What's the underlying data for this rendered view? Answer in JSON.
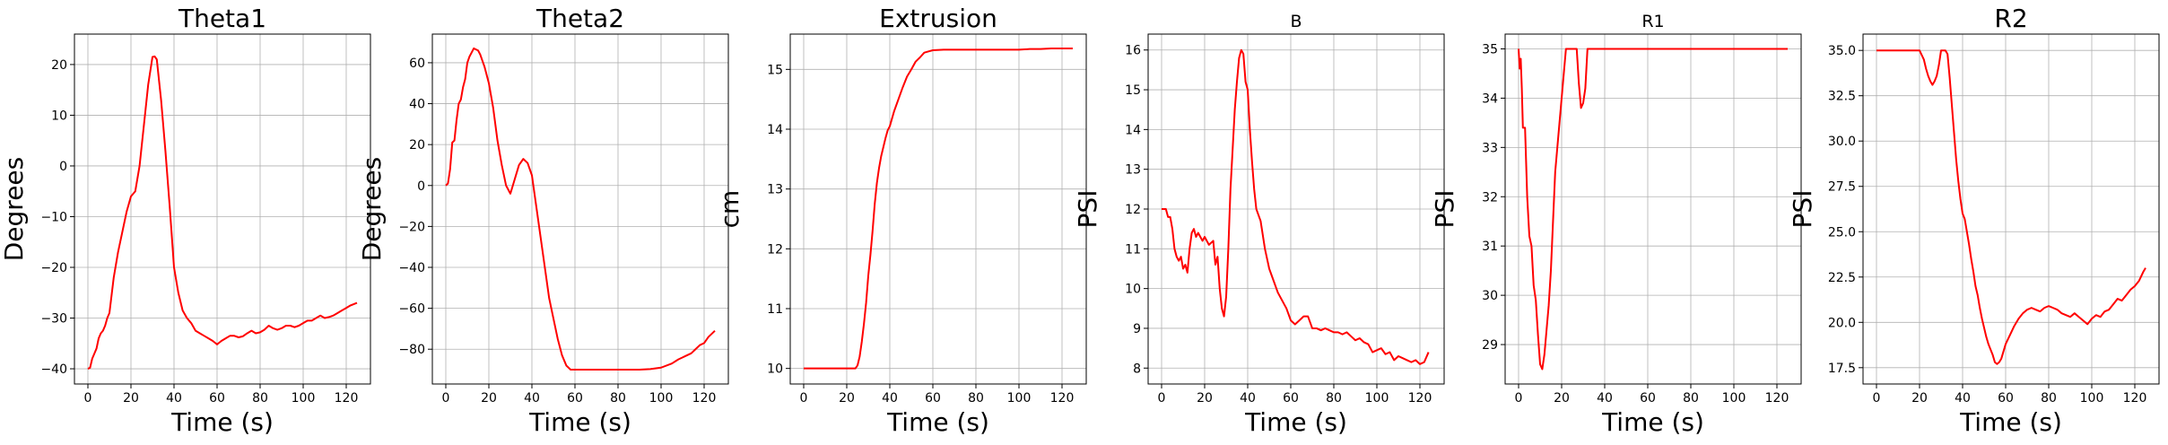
{
  "chart_data": [
    {
      "type": "line",
      "title": "Theta1",
      "xlabel": "Time (s)",
      "ylabel": "Degrees",
      "xlim": [
        -6.25,
        131.25
      ],
      "ylim": [
        -43,
        26
      ],
      "xticks": [
        0,
        20,
        40,
        60,
        80,
        100,
        120
      ],
      "yticks": [
        -40,
        -30,
        -20,
        -10,
        0,
        10,
        20
      ],
      "xtick_labels": [
        "0",
        "20",
        "40",
        "60",
        "80",
        "100",
        "120"
      ],
      "ytick_labels": [
        "−40",
        "−30",
        "−20",
        "−10",
        "0",
        "10",
        "20"
      ],
      "grid": true,
      "color": "#ff0000",
      "series": [
        {
          "x": [
            0,
            1,
            2,
            3,
            4,
            5,
            6,
            7,
            8,
            9,
            10,
            12,
            14,
            16,
            18,
            20,
            22,
            24,
            26,
            28,
            30,
            31,
            32,
            34,
            36,
            38,
            40,
            42,
            44,
            46,
            48,
            50,
            52,
            54,
            56,
            58,
            60,
            62,
            64,
            66,
            68,
            70,
            72,
            74,
            76,
            78,
            80,
            82,
            84,
            86,
            88,
            90,
            92,
            94,
            96,
            98,
            100,
            102,
            104,
            106,
            108,
            110,
            112,
            114,
            116,
            118,
            120,
            122,
            125
          ],
          "values": [
            -40,
            -39.8,
            -38,
            -37,
            -36,
            -34,
            -33,
            -32.5,
            -31.5,
            -30,
            -29,
            -22,
            -17,
            -13,
            -9,
            -6,
            -5,
            0,
            8,
            16,
            21.5,
            21.6,
            21,
            13,
            3,
            -8,
            -20,
            -25,
            -28.5,
            -30,
            -31,
            -32.5,
            -33,
            -33.5,
            -34,
            -34.5,
            -35.2,
            -34.5,
            -34,
            -33.5,
            -33.5,
            -33.8,
            -33.6,
            -33,
            -32.5,
            -33,
            -32.8,
            -32.3,
            -31.5,
            -32,
            -32.3,
            -32,
            -31.5,
            -31.5,
            -31.8,
            -31.5,
            -31,
            -30.5,
            -30.5,
            -30,
            -29.5,
            -30,
            -29.8,
            -29.5,
            -29,
            -28.5,
            -28,
            -27.5,
            -27
          ]
        }
      ]
    },
    {
      "type": "line",
      "title": "Theta2",
      "xlabel": "Time (s)",
      "ylabel": "Degrees",
      "xlim": [
        -6.25,
        131.25
      ],
      "ylim": [
        -97,
        74
      ],
      "xticks": [
        0,
        20,
        40,
        60,
        80,
        100,
        120
      ],
      "yticks": [
        -80,
        -60,
        -40,
        -20,
        0,
        20,
        40,
        60
      ],
      "xtick_labels": [
        "0",
        "20",
        "40",
        "60",
        "80",
        "100",
        "120"
      ],
      "ytick_labels": [
        "−80",
        "−60",
        "−40",
        "−20",
        "0",
        "20",
        "40",
        "60"
      ],
      "grid": true,
      "color": "#ff0000",
      "series": [
        {
          "x": [
            0,
            1,
            2,
            3,
            4,
            5,
            6,
            7,
            8,
            9,
            10,
            11,
            12,
            13,
            14,
            15,
            16,
            17,
            18,
            20,
            22,
            24,
            26,
            28,
            30,
            32,
            34,
            36,
            38,
            40,
            42,
            44,
            46,
            48,
            50,
            52,
            54,
            56,
            58,
            60,
            65,
            70,
            75,
            80,
            85,
            90,
            95,
            100,
            105,
            108,
            110,
            112,
            114,
            116,
            118,
            120,
            122,
            125
          ],
          "values": [
            0,
            1,
            8,
            21,
            22,
            32,
            40,
            42,
            48,
            52,
            60,
            63,
            65,
            67,
            66.5,
            66,
            64,
            61,
            58,
            50,
            38,
            22,
            10,
            0,
            -4,
            3,
            10,
            13,
            11,
            5,
            -10,
            -25,
            -40,
            -55,
            -65,
            -75,
            -83,
            -88,
            -90,
            -90,
            -90,
            -90,
            -90,
            -90,
            -90,
            -90,
            -89.7,
            -89,
            -87,
            -85,
            -84,
            -83,
            -82,
            -80,
            -78,
            -77,
            -74,
            -71
          ]
        }
      ]
    },
    {
      "type": "line",
      "title": "Extrusion",
      "xlabel": "Time (s)",
      "ylabel": "cm",
      "xlim": [
        -6.25,
        131.25
      ],
      "ylim": [
        9.74,
        15.59
      ],
      "xticks": [
        0,
        20,
        40,
        60,
        80,
        100,
        120
      ],
      "yticks": [
        10,
        11,
        12,
        13,
        14,
        15
      ],
      "xtick_labels": [
        "0",
        "20",
        "40",
        "60",
        "80",
        "100",
        "120"
      ],
      "ytick_labels": [
        "10",
        "11",
        "12",
        "13",
        "14",
        "15"
      ],
      "grid": true,
      "color": "#ff0000",
      "series": [
        {
          "x": [
            0,
            5,
            10,
            15,
            20,
            22,
            24,
            25,
            26,
            27,
            28,
            29,
            30,
            31,
            32,
            33,
            34,
            35,
            36,
            37,
            38,
            39,
            40,
            42,
            44,
            46,
            48,
            50,
            52,
            54,
            56,
            58,
            60,
            65,
            70,
            80,
            90,
            100,
            105,
            110,
            115,
            120,
            125
          ],
          "values": [
            10,
            10,
            10,
            10,
            10,
            10,
            10,
            10.05,
            10.2,
            10.45,
            10.75,
            11.1,
            11.55,
            11.9,
            12.3,
            12.75,
            13.1,
            13.35,
            13.55,
            13.7,
            13.85,
            13.98,
            14.05,
            14.3,
            14.5,
            14.7,
            14.88,
            15.0,
            15.13,
            15.2,
            15.28,
            15.3,
            15.32,
            15.33,
            15.33,
            15.33,
            15.33,
            15.33,
            15.34,
            15.34,
            15.35,
            15.35,
            15.35
          ]
        }
      ]
    },
    {
      "type": "line",
      "title": "B",
      "xlabel": "Time (s)",
      "ylabel": "PSI",
      "xlim": [
        -6.25,
        131.25
      ],
      "ylim": [
        7.6,
        16.4
      ],
      "xticks": [
        0,
        20,
        40,
        60,
        80,
        100,
        120
      ],
      "yticks": [
        8,
        9,
        10,
        11,
        12,
        13,
        14,
        15,
        16
      ],
      "xtick_labels": [
        "0",
        "20",
        "40",
        "60",
        "80",
        "100",
        "120"
      ],
      "ytick_labels": [
        "8",
        "9",
        "10",
        "11",
        "12",
        "13",
        "14",
        "15",
        "16"
      ],
      "grid": true,
      "color": "#ff0000",
      "series": [
        {
          "x": [
            0,
            2,
            3,
            4,
            5,
            6,
            7,
            8,
            9,
            10,
            11,
            12,
            13,
            14,
            15,
            16,
            17,
            18,
            19,
            20,
            22,
            24,
            25,
            26,
            27,
            28,
            29,
            30,
            31,
            32,
            33,
            34,
            35,
            36,
            37,
            38,
            39,
            40,
            41,
            42,
            43,
            44,
            46,
            48,
            50,
            52,
            54,
            56,
            58,
            60,
            62,
            64,
            66,
            68,
            70,
            72,
            74,
            76,
            78,
            80,
            82,
            84,
            86,
            88,
            90,
            92,
            94,
            96,
            98,
            100,
            102,
            104,
            106,
            108,
            110,
            112,
            114,
            116,
            118,
            120,
            122,
            124
          ],
          "values": [
            12,
            12,
            11.8,
            11.8,
            11.5,
            11.0,
            10.8,
            10.7,
            10.8,
            10.5,
            10.6,
            10.4,
            11.0,
            11.4,
            11.5,
            11.3,
            11.4,
            11.3,
            11.2,
            11.3,
            11.1,
            11.2,
            10.6,
            10.8,
            10.0,
            9.5,
            9.3,
            9.8,
            11.0,
            12.5,
            13.5,
            14.5,
            15.2,
            15.8,
            16.0,
            15.9,
            15.2,
            15.0,
            14.0,
            13.2,
            12.5,
            12.0,
            11.7,
            11.0,
            10.5,
            10.2,
            9.9,
            9.7,
            9.5,
            9.2,
            9.1,
            9.2,
            9.3,
            9.3,
            9.0,
            9.0,
            8.95,
            9.0,
            8.95,
            8.9,
            8.9,
            8.85,
            8.9,
            8.8,
            8.7,
            8.75,
            8.65,
            8.6,
            8.4,
            8.45,
            8.5,
            8.35,
            8.4,
            8.2,
            8.3,
            8.25,
            8.2,
            8.15,
            8.2,
            8.1,
            8.15,
            8.4
          ]
        }
      ]
    },
    {
      "type": "line",
      "title": "R1",
      "xlabel": "Time (s)",
      "ylabel": "PSI",
      "xlim": [
        -6.25,
        131.25
      ],
      "ylim": [
        28.2,
        35.3
      ],
      "xticks": [
        0,
        20,
        40,
        60,
        80,
        100,
        120
      ],
      "yticks": [
        29,
        30,
        31,
        32,
        33,
        34,
        35
      ],
      "xtick_labels": [
        "0",
        "20",
        "40",
        "60",
        "80",
        "100",
        "120"
      ],
      "ytick_labels": [
        "29",
        "30",
        "31",
        "32",
        "33",
        "34",
        "35"
      ],
      "grid": true,
      "color": "#ff0000",
      "series": [
        {
          "x": [
            0,
            0.5,
            1,
            1.5,
            2,
            3,
            4,
            5,
            6,
            7,
            8,
            9,
            10,
            11,
            12,
            13,
            14,
            15,
            16,
            17,
            18,
            19,
            20,
            21,
            22,
            23,
            24,
            25,
            26,
            27,
            28,
            29,
            30,
            31,
            32,
            33,
            34,
            35,
            40,
            50,
            60,
            80,
            100,
            120,
            125
          ],
          "values": [
            35,
            34.6,
            34.8,
            34.2,
            33.4,
            33.4,
            32.0,
            31.2,
            31.0,
            30.2,
            29.9,
            29.2,
            28.6,
            28.5,
            28.8,
            29.3,
            29.8,
            30.5,
            31.5,
            32.5,
            33.0,
            33.5,
            34.0,
            34.5,
            35,
            35,
            35,
            35,
            35,
            35,
            34.3,
            33.8,
            33.9,
            34.2,
            35,
            35,
            35,
            35,
            35,
            35,
            35,
            35,
            35,
            35,
            35
          ]
        }
      ]
    },
    {
      "type": "line",
      "title": "R2",
      "xlabel": "Time (s)",
      "ylabel": "PSI",
      "xlim": [
        -6.25,
        131.25
      ],
      "ylim": [
        16.6,
        35.9
      ],
      "xticks": [
        0,
        20,
        40,
        60,
        80,
        100,
        120
      ],
      "yticks": [
        17.5,
        20.0,
        22.5,
        25.0,
        27.5,
        30.0,
        32.5,
        35.0
      ],
      "xtick_labels": [
        "0",
        "20",
        "40",
        "60",
        "80",
        "100",
        "120"
      ],
      "ytick_labels": [
        "17.5",
        "20.0",
        "22.5",
        "25.0",
        "27.5",
        "30.0",
        "32.5",
        "35.0"
      ],
      "grid": true,
      "color": "#ff0000",
      "series": [
        {
          "x": [
            0,
            5,
            10,
            15,
            20,
            22,
            23,
            24,
            25,
            26,
            27,
            28,
            29,
            30,
            31,
            32,
            33,
            34,
            35,
            36,
            37,
            38,
            39,
            40,
            41,
            42,
            43,
            44,
            45,
            46,
            47,
            48,
            49,
            50,
            51,
            52,
            53,
            54,
            55,
            56,
            57,
            58,
            60,
            62,
            64,
            66,
            68,
            70,
            72,
            74,
            76,
            78,
            80,
            82,
            84,
            86,
            88,
            90,
            92,
            94,
            96,
            98,
            100,
            102,
            104,
            106,
            108,
            110,
            112,
            114,
            116,
            118,
            120,
            122,
            124,
            125
          ],
          "values": [
            35,
            35,
            35,
            35,
            35,
            34.5,
            34,
            33.6,
            33.3,
            33.1,
            33.3,
            33.6,
            34.2,
            35,
            35,
            35,
            34.8,
            33.5,
            32.0,
            30.5,
            29.0,
            27.8,
            26.8,
            26.0,
            25.7,
            25.0,
            24.3,
            23.5,
            22.8,
            22.0,
            21.5,
            20.8,
            20.2,
            19.7,
            19.2,
            18.8,
            18.5,
            18.2,
            17.8,
            17.7,
            17.8,
            18.0,
            18.8,
            19.3,
            19.8,
            20.2,
            20.5,
            20.7,
            20.8,
            20.7,
            20.6,
            20.8,
            20.9,
            20.8,
            20.7,
            20.5,
            20.4,
            20.3,
            20.5,
            20.3,
            20.1,
            19.9,
            20.2,
            20.4,
            20.3,
            20.6,
            20.7,
            21.0,
            21.3,
            21.2,
            21.5,
            21.8,
            22.0,
            22.3,
            22.8,
            23.0
          ]
        }
      ]
    }
  ]
}
